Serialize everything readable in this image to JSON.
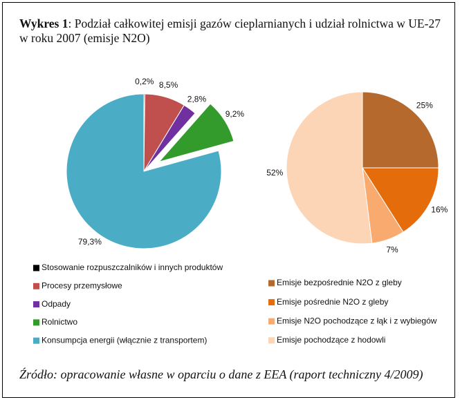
{
  "title_label": "Wykres 1",
  "title": ": Podział całkowitej emisji gazów cieplarnianych i udział rolnictwa w UE-27 w roku 2007 (emisje N2O)",
  "source": "Źródło: opracowanie własne w oparciu o dane z EEA (raport techniczny 4/2009)",
  "chart_data": [
    {
      "type": "pie",
      "categories": [
        "Stosowanie rozpuszczalników i innych produktów",
        "Procesy przemysłowe",
        "Odpady",
        "Rolnictwo",
        "Konsumpcja energii (włącznie z transportem)"
      ],
      "values": [
        0.2,
        8.5,
        2.8,
        9.2,
        79.3
      ],
      "value_labels": [
        "0,2%",
        "8,5%",
        "2,8%",
        "9,2%",
        "79,3%"
      ],
      "colors": [
        "#000000",
        "#c0504d",
        "#7030a0",
        "#339a2c",
        "#4bacc6"
      ],
      "explode": [
        false,
        false,
        false,
        true,
        false
      ]
    },
    {
      "type": "pie",
      "categories": [
        "Emisje bezpośrednie N2O z gleby",
        "Emisje pośrednie N2O z gleby",
        "Emisje N2O pochodzące z łąk i z wybiegów",
        "Emisje pochodzące z hodowli"
      ],
      "values": [
        25,
        16,
        7,
        52
      ],
      "value_labels": [
        "25%",
        "16%",
        "7%",
        "52%"
      ],
      "colors": [
        "#b5692c",
        "#e46c0a",
        "#f9ab6f",
        "#fbd5b5"
      ],
      "explode": [
        false,
        false,
        false,
        false
      ]
    }
  ]
}
